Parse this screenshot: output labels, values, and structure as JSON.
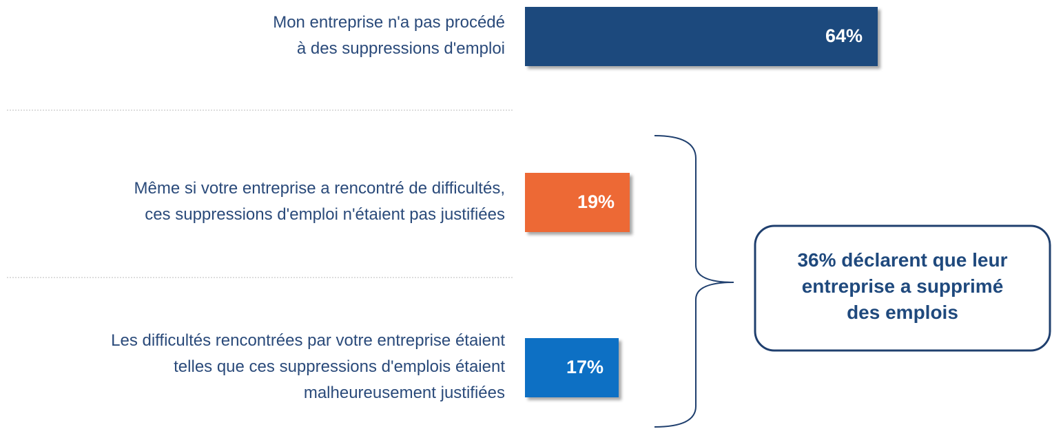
{
  "chart_data": {
    "type": "bar",
    "categories": [
      "Mon entreprise n'a pas procédé\nà des suppressions d'emploi",
      "Même si votre entreprise a rencontré de difficultés,\nces suppressions d'emploi n'étaient pas justifiées",
      "Les difficultés rencontrées par votre entreprise étaient\ntelles que ces suppressions d'emplois étaient\nmalheureusement justifiées"
    ],
    "values": [
      64,
      19,
      17
    ],
    "value_labels": [
      "64%",
      "19%",
      "17%"
    ],
    "colors": [
      "#1f497d",
      "#ed6935",
      "#0b6fc4"
    ],
    "annotation": "36% déclarent que leur\nentreprise a supprimé\ndes emplois"
  }
}
